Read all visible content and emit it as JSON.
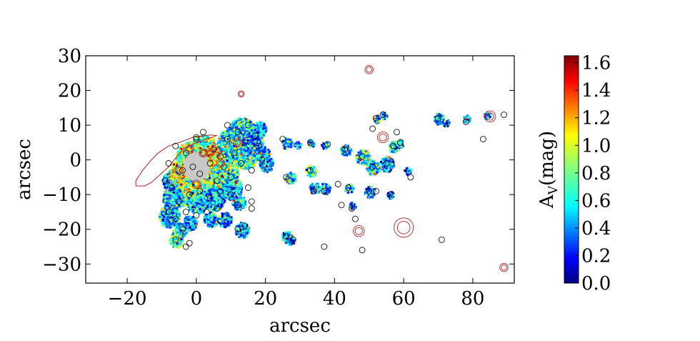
{
  "chart_data": {
    "type": "scatter",
    "title": "",
    "xlabel": "arcsec",
    "ylabel": "arcsec",
    "xlim": [
      -32,
      92
    ],
    "ylim": [
      -35.5,
      30
    ],
    "xticks": [
      -20,
      0,
      20,
      40,
      60,
      80
    ],
    "xtick_labels": [
      "−20",
      "0",
      "20",
      "40",
      "60",
      "80"
    ],
    "yticks": [
      30,
      20,
      10,
      0,
      -10,
      -20,
      -30
    ],
    "ytick_labels": [
      "30",
      "20",
      "10",
      "0",
      "−10",
      "−20",
      "−30"
    ],
    "grid": false,
    "colormap": "jet",
    "colorbar": {
      "label": "A_V(mag)",
      "label_main": "A",
      "label_sub": "V",
      "label_rest": "(mag)",
      "min": 0.0,
      "max": 1.65,
      "ticks": [
        0.0,
        0.2,
        0.4,
        0.6,
        0.8,
        1.0,
        1.2,
        1.4,
        1.6
      ],
      "tick_labels": [
        "0.0",
        "0.2",
        "0.4",
        "0.6",
        "0.8",
        "1.0",
        "1.2",
        "1.4",
        "1.6"
      ]
    },
    "series": [
      {
        "kind": "extinction_map_regions",
        "points": [
          {
            "x": -7,
            "y": -6,
            "r": 3,
            "av": 0.5
          },
          {
            "x": -4,
            "y": -4,
            "r": 4,
            "av": 1.0
          },
          {
            "x": -2,
            "y": 1,
            "r": 4,
            "av": 0.9
          },
          {
            "x": 2,
            "y": 3,
            "r": 4,
            "av": 0.8
          },
          {
            "x": 5,
            "y": 0,
            "r": 4,
            "av": 1.1
          },
          {
            "x": 8,
            "y": -4,
            "r": 4,
            "av": 0.7
          },
          {
            "x": 10,
            "y": 5,
            "r": 4,
            "av": 0.6
          },
          {
            "x": 13,
            "y": 8,
            "r": 4,
            "av": 0.6
          },
          {
            "x": 14,
            "y": 2,
            "r": 4,
            "av": 0.7
          },
          {
            "x": 10,
            "y": -8,
            "r": 3,
            "av": 0.6
          },
          {
            "x": 3,
            "y": -8,
            "r": 4,
            "av": 0.8
          },
          {
            "x": -3,
            "y": -9,
            "r": 4,
            "av": 0.9
          },
          {
            "x": -7,
            "y": -11,
            "r": 3,
            "av": 0.5
          },
          {
            "x": 0,
            "y": -12,
            "r": 3,
            "av": 0.6
          },
          {
            "x": 5,
            "y": -11,
            "r": 3,
            "av": 0.5
          },
          {
            "x": 16,
            "y": 5,
            "r": 3,
            "av": 0.5
          },
          {
            "x": 18,
            "y": 9,
            "r": 2,
            "av": 0.5
          },
          {
            "x": 12,
            "y": -12,
            "r": 2,
            "av": 0.5
          },
          {
            "x": -8,
            "y": -16,
            "r": 3,
            "av": 0.5
          },
          {
            "x": -5,
            "y": -20,
            "r": 2,
            "av": 0.6
          },
          {
            "x": -6,
            "y": -23,
            "r": 2,
            "av": 0.7
          },
          {
            "x": -2,
            "y": -18,
            "r": 2,
            "av": 0.5
          },
          {
            "x": 4,
            "y": -17,
            "r": 2,
            "av": 0.5
          },
          {
            "x": 8,
            "y": -17,
            "r": 2,
            "av": 0.4
          },
          {
            "x": 13,
            "y": -20,
            "r": 2,
            "av": 0.5
          },
          {
            "x": 19,
            "y": 2,
            "r": 2,
            "av": 0.5
          },
          {
            "x": 20,
            "y": -1,
            "r": 2,
            "av": 0.5
          },
          {
            "x": 26,
            "y": 5,
            "r": 1.5,
            "av": 0.6
          },
          {
            "x": 27,
            "y": -5,
            "r": 1.5,
            "av": 0.6
          },
          {
            "x": 26,
            "y": -22,
            "r": 1.5,
            "av": 0.5
          },
          {
            "x": 27,
            "y": -23,
            "r": 1.2,
            "av": 0.4
          },
          {
            "x": 33,
            "y": -3,
            "r": 1.5,
            "av": 0.7
          },
          {
            "x": 34,
            "y": -8,
            "r": 1.5,
            "av": 0.5
          },
          {
            "x": 37,
            "y": -8,
            "r": 1.5,
            "av": 0.5
          },
          {
            "x": 33,
            "y": 5,
            "r": 1.0,
            "av": 0.5
          },
          {
            "x": 29,
            "y": 4.5,
            "r": 1.0,
            "av": 0.4
          },
          {
            "x": 37,
            "y": 4.5,
            "r": 1.0,
            "av": 0.5
          },
          {
            "x": 43,
            "y": 3,
            "r": 1.5,
            "av": 0.5
          },
          {
            "x": 44,
            "y": -8,
            "r": 1.2,
            "av": 0.5
          },
          {
            "x": 45,
            "y": -13,
            "r": 1.0,
            "av": 0.5
          },
          {
            "x": 48,
            "y": 1,
            "r": 2,
            "av": 0.6
          },
          {
            "x": 51,
            "y": -2,
            "r": 2,
            "av": 0.6
          },
          {
            "x": 55,
            "y": -1,
            "r": 2,
            "av": 0.5
          },
          {
            "x": 50,
            "y": -9,
            "r": 1.5,
            "av": 0.5
          },
          {
            "x": 57,
            "y": 4,
            "r": 1.5,
            "av": 0.6
          },
          {
            "x": 59,
            "y": 5,
            "r": 1.0,
            "av": 0.6
          },
          {
            "x": 54,
            "y": 13,
            "r": 1.0,
            "av": 0.5
          },
          {
            "x": 52,
            "y": 12,
            "r": 1.0,
            "av": 0.5
          },
          {
            "x": 61,
            "y": -3,
            "r": 1.0,
            "av": 0.4
          },
          {
            "x": 70,
            "y": 12,
            "r": 1.5,
            "av": 0.5
          },
          {
            "x": 72,
            "y": 11,
            "r": 1.0,
            "av": 0.4
          },
          {
            "x": 78,
            "y": 12,
            "r": 1.0,
            "av": 0.5
          },
          {
            "x": 84,
            "y": 13,
            "r": 1.0,
            "av": 0.5
          },
          {
            "x": 56,
            "y": -10,
            "r": 1.0,
            "av": 0.4
          }
        ]
      },
      {
        "kind": "dark_circle_apertures",
        "points": [
          {
            "x": -6,
            "y": 4
          },
          {
            "x": -4,
            "y": -3
          },
          {
            "x": -3,
            "y": 2
          },
          {
            "x": 0,
            "y": 6
          },
          {
            "x": 1,
            "y": -4
          },
          {
            "x": 2,
            "y": 2
          },
          {
            "x": 4,
            "y": -1
          },
          {
            "x": 5,
            "y": 3
          },
          {
            "x": 6,
            "y": -6
          },
          {
            "x": 7,
            "y": 1
          },
          {
            "x": 8,
            "y": -2
          },
          {
            "x": 9,
            "y": 6
          },
          {
            "x": 10,
            "y": -5
          },
          {
            "x": 11,
            "y": 2
          },
          {
            "x": 12,
            "y": 8
          },
          {
            "x": 13,
            "y": -1
          },
          {
            "x": 14,
            "y": 5
          },
          {
            "x": 15,
            "y": 10
          },
          {
            "x": 16,
            "y": -3
          },
          {
            "x": 17,
            "y": 7
          },
          {
            "x": -7,
            "y": -8
          },
          {
            "x": -5,
            "y": -12
          },
          {
            "x": -2,
            "y": -10
          },
          {
            "x": 1,
            "y": -9
          },
          {
            "x": 4,
            "y": -11
          },
          {
            "x": 7,
            "y": -9
          },
          {
            "x": 10,
            "y": -10
          },
          {
            "x": 12,
            "y": -13
          },
          {
            "x": -8,
            "y": -15
          },
          {
            "x": -6,
            "y": -17
          },
          {
            "x": -3,
            "y": -15
          },
          {
            "x": 0,
            "y": -16
          },
          {
            "x": 3,
            "y": -15
          },
          {
            "x": 6,
            "y": -14
          },
          {
            "x": -4,
            "y": -20
          },
          {
            "x": -6,
            "y": -23
          },
          {
            "x": -2,
            "y": -24
          },
          {
            "x": 12,
            "y": -20
          },
          {
            "x": 14,
            "y": -19
          },
          {
            "x": 16,
            "y": -12
          },
          {
            "x": 18,
            "y": 4
          },
          {
            "x": 19,
            "y": 0
          },
          {
            "x": 15,
            "y": -8
          },
          {
            "x": 9,
            "y": 10
          },
          {
            "x": 2,
            "y": 8
          },
          {
            "x": -1,
            "y": -2
          },
          {
            "x": -8,
            "y": -1
          },
          {
            "x": -9,
            "y": -6
          },
          {
            "x": 25,
            "y": 6
          },
          {
            "x": 26,
            "y": -5
          },
          {
            "x": 26,
            "y": -22
          },
          {
            "x": 28,
            "y": -23
          },
          {
            "x": 33,
            "y": -3
          },
          {
            "x": 34,
            "y": -9
          },
          {
            "x": 37,
            "y": -9
          },
          {
            "x": 33,
            "y": 5
          },
          {
            "x": 38,
            "y": 4.5
          },
          {
            "x": 43,
            "y": 3
          },
          {
            "x": 44,
            "y": -8
          },
          {
            "x": 45,
            "y": -14
          },
          {
            "x": 48,
            "y": 1
          },
          {
            "x": 51,
            "y": -2
          },
          {
            "x": 55,
            "y": -1
          },
          {
            "x": 50,
            "y": -9
          },
          {
            "x": 52,
            "y": -9
          },
          {
            "x": 56,
            "y": -10
          },
          {
            "x": 57,
            "y": 4
          },
          {
            "x": 52,
            "y": 12
          },
          {
            "x": 54,
            "y": 13
          },
          {
            "x": 51,
            "y": 9
          },
          {
            "x": 58,
            "y": 8
          },
          {
            "x": 62,
            "y": -5
          },
          {
            "x": 59,
            "y": 5
          },
          {
            "x": 41,
            "y": -7
          },
          {
            "x": 42,
            "y": -13
          },
          {
            "x": 46,
            "y": -17
          },
          {
            "x": 37,
            "y": -25
          },
          {
            "x": 48,
            "y": -26
          },
          {
            "x": 71,
            "y": -23
          },
          {
            "x": 70,
            "y": 12
          },
          {
            "x": 78,
            "y": 11
          },
          {
            "x": 83,
            "y": 6
          },
          {
            "x": 89,
            "y": 13
          },
          {
            "x": 0,
            "y": 6.5
          },
          {
            "x": -3,
            "y": -25
          },
          {
            "x": 16,
            "y": -14
          }
        ]
      },
      {
        "kind": "red_circle_apertures",
        "points": [
          {
            "x": -5,
            "y": -3,
            "r": 1.2
          },
          {
            "x": -2,
            "y": 3,
            "r": 1.2
          },
          {
            "x": 2,
            "y": 2,
            "r": 1.2
          },
          {
            "x": 4,
            "y": 2,
            "r": 1.2
          },
          {
            "x": 7,
            "y": -1,
            "r": 1.2
          },
          {
            "x": 12,
            "y": 5,
            "r": 1.2
          },
          {
            "x": 0,
            "y": -7,
            "r": 1.2
          },
          {
            "x": 50,
            "y": 26,
            "r": 1.2
          },
          {
            "x": 13,
            "y": 19,
            "r": 0.9
          },
          {
            "x": 54,
            "y": 6.5,
            "r": 1.6
          },
          {
            "x": 47,
            "y": -20.5,
            "r": 1.6
          },
          {
            "x": 60,
            "y": -19.5,
            "r": 2.8
          },
          {
            "x": 85,
            "y": 12.5,
            "r": 1.6
          },
          {
            "x": 89,
            "y": -31,
            "r": 1.2
          }
        ]
      }
    ],
    "contour": {
      "color": "#b22222",
      "points": [
        [
          -17.5,
          -7.5
        ],
        [
          -17.5,
          -6.0
        ],
        [
          -15.5,
          -3.0
        ],
        [
          -13.0,
          0.0
        ],
        [
          -11.0,
          2.0
        ],
        [
          -8.0,
          4.0
        ],
        [
          -5.0,
          5.0
        ],
        [
          -1.0,
          6.5
        ],
        [
          4.0,
          7.2
        ],
        [
          6.0,
          7.0
        ],
        [
          3.0,
          6.0
        ],
        [
          -1.0,
          4.5
        ],
        [
          -4.0,
          3.0
        ],
        [
          -8.0,
          -2.0
        ],
        [
          -13.0,
          -6.5
        ],
        [
          -15.0,
          -7.5
        ],
        [
          -17.5,
          -7.5
        ]
      ]
    },
    "masked_nucleus": {
      "x": 0,
      "y": -2,
      "rx": 3.8,
      "ry": 4.2
    }
  }
}
